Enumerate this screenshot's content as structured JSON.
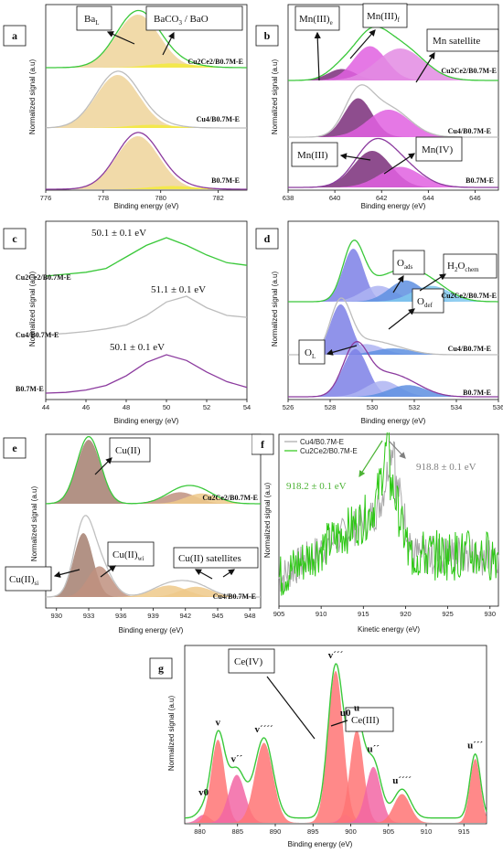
{
  "figure": {
    "panels": [
      "a",
      "b",
      "c",
      "d",
      "e",
      "f",
      "g"
    ]
  },
  "chart_data": [
    {
      "panel": "a",
      "type": "line",
      "xlabel": "Binding energy (eV)",
      "ylabel": "Normalized signal (a.u)",
      "xlim": [
        776,
        783
      ],
      "xticks": [
        776,
        778,
        780,
        782
      ],
      "colors": {
        "envelope_top": "#3ac83a",
        "envelope_mid": "#bdbdbd",
        "envelope_bottom": "#8b3a9e",
        "fill_main": "#eed49a",
        "fill_minor": "#f3ea3c"
      },
      "series": [
        {
          "name": "Cu2Ce2/B0.7M-E",
          "peaks": [
            {
              "label": "BaL",
              "center": 779.2,
              "sigma": 0.75,
              "amp": 1.0
            },
            {
              "label": "BaCO3 / BaO",
              "center": 780.4,
              "sigma": 0.8,
              "amp": 0.08
            }
          ]
        },
        {
          "name": "Cu4/B0.7M-E",
          "peaks": [
            {
              "label": "BaL",
              "center": 778.5,
              "sigma": 0.75,
              "amp": 1.0
            },
            {
              "label": "BaCO3 / BaO",
              "center": 779.7,
              "sigma": 0.8,
              "amp": 0.06
            }
          ]
        },
        {
          "name": "B0.7M-E",
          "peaks": [
            {
              "label": "BaL",
              "center": 779.2,
              "sigma": 0.75,
              "amp": 1.0
            },
            {
              "label": "BaCO3 / BaO",
              "center": 780.4,
              "sigma": 0.8,
              "amp": 0.06
            }
          ]
        }
      ],
      "annotations": {
        "ba_l_main": "Ba",
        "ba_l_sub": "L",
        "baco3_a": "BaCO",
        "baco3_sub": "3",
        "baco3_b": " / BaO"
      }
    },
    {
      "panel": "b",
      "type": "line",
      "xlabel": "Binding energy (eV)",
      "ylabel": "Normalized signal (a.u)",
      "xlim": [
        638,
        647
      ],
      "xticks": [
        638,
        640,
        642,
        644,
        646
      ],
      "colors": {
        "envelope_top": "#3ac83a",
        "envelope_mid": "#bdbdbd",
        "envelope_bottom": "#8b3a9e",
        "mn_e": "#7a2e7a",
        "mn_f": "#e060e0",
        "mn_sat": "#e38be3"
      },
      "series": [
        {
          "name": "Cu2Ce2/B0.7M-E",
          "peaks": [
            {
              "label": "Mn(III)e",
              "center": 640.3,
              "sigma": 0.6,
              "amp": 0.25
            },
            {
              "label": "Mn(III)f",
              "center": 641.5,
              "sigma": 0.7,
              "amp": 0.75
            },
            {
              "label": "Mn satellite",
              "center": 642.8,
              "sigma": 1.0,
              "amp": 0.7
            }
          ]
        },
        {
          "name": "Cu4/B0.7M-E",
          "peaks": [
            {
              "label": "Mn(III)",
              "center": 641.0,
              "sigma": 0.6,
              "amp": 0.85
            },
            {
              "label": "Mn(IV)",
              "center": 642.3,
              "sigma": 0.9,
              "amp": 0.6
            }
          ]
        },
        {
          "name": "B0.7M-E",
          "peaks": [
            {
              "label": "Mn(III)",
              "center": 641.6,
              "sigma": 0.8,
              "amp": 0.8
            },
            {
              "label": "Mn(IV)",
              "center": 642.8,
              "sigma": 0.9,
              "amp": 0.45
            }
          ]
        }
      ],
      "annotations": {
        "mn_e_main": "Mn(III)",
        "mn_e_sub": "e",
        "mn_f_main": "Mn(III)",
        "mn_f_sub": "f",
        "mn_sat": "Mn satellite",
        "mn_iii": "Mn(III)",
        "mn_iv": "Mn(IV)"
      }
    },
    {
      "panel": "c",
      "type": "line",
      "xlabel": "Binding energy (eV)",
      "ylabel": "Normalized signal (a.u)",
      "xlim": [
        44,
        54
      ],
      "xticks": [
        44,
        46,
        48,
        50,
        52,
        54
      ],
      "colors": {
        "top": "#3ac83a",
        "mid": "#bdbdbd",
        "bottom": "#8b3a9e"
      },
      "series": [
        {
          "name": "Cu2Ce2/B0.7M-E",
          "x": [
            44,
            45,
            46,
            47,
            48,
            49,
            50,
            51,
            52,
            53,
            54
          ],
          "y": [
            0.0,
            0.05,
            0.1,
            0.2,
            0.5,
            0.8,
            1.0,
            0.8,
            0.55,
            0.35,
            0.28
          ]
        },
        {
          "name": "Cu4/B0.7M-E",
          "x": [
            44,
            45,
            46,
            47,
            48,
            49,
            50,
            51,
            52,
            53,
            54
          ],
          "y": [
            0.0,
            0.03,
            0.08,
            0.15,
            0.25,
            0.5,
            0.85,
            1.0,
            0.7,
            0.5,
            0.45
          ]
        },
        {
          "name": "B0.7M-E",
          "x": [
            44,
            45,
            46,
            47,
            48,
            49,
            50,
            51,
            52,
            53,
            54
          ],
          "y": [
            0.0,
            0.02,
            0.08,
            0.2,
            0.45,
            0.8,
            1.0,
            0.85,
            0.55,
            0.3,
            0.15
          ]
        }
      ],
      "annotations": {
        "top": "50.1 ± 0.1 eV",
        "mid": "51.1 ± 0.1 eV",
        "bottom": "50.1 ± 0.1 eV"
      }
    },
    {
      "panel": "d",
      "type": "line",
      "xlabel": "Binding energy (eV)",
      "ylabel": "Normalized signal (a.u)",
      "xlim": [
        526,
        536
      ],
      "xticks": [
        526,
        528,
        530,
        532,
        534,
        536
      ],
      "colors": {
        "envelope_top": "#3ac83a",
        "envelope_mid": "#bdbdbd",
        "envelope_bottom": "#8b3a9e",
        "ol": "#7d80e6",
        "odef": "#aeb4f2",
        "oads": "#5e8fe0",
        "h2o": "#80c8ee"
      },
      "series": [
        {
          "name": "Cu2Ce2/B0.7M-E",
          "peaks": [
            {
              "label": "OL",
              "center": 529.1,
              "sigma": 0.5,
              "amp": 1.0
            },
            {
              "label": "Odef",
              "center": 530.3,
              "sigma": 0.8,
              "amp": 0.3
            },
            {
              "label": "Oads",
              "center": 531.6,
              "sigma": 0.8,
              "amp": 0.4
            },
            {
              "label": "H2Ochem",
              "center": 532.8,
              "sigma": 0.9,
              "amp": 0.3
            }
          ]
        },
        {
          "name": "Cu4/B0.7M-E",
          "peaks": [
            {
              "label": "OL",
              "center": 528.5,
              "sigma": 0.5,
              "amp": 0.95
            },
            {
              "label": "Odef",
              "center": 529.7,
              "sigma": 0.8,
              "amp": 0.2
            },
            {
              "label": "Oads",
              "center": 531.0,
              "sigma": 0.9,
              "amp": 0.12
            }
          ]
        },
        {
          "name": "B0.7M-E",
          "peaks": [
            {
              "label": "OL",
              "center": 529.2,
              "sigma": 0.6,
              "amp": 0.9
            },
            {
              "label": "Odef",
              "center": 530.5,
              "sigma": 0.8,
              "amp": 0.3
            },
            {
              "label": "Oads",
              "center": 531.7,
              "sigma": 0.9,
              "amp": 0.22
            }
          ]
        }
      ],
      "annotations": {
        "oads_main": "O",
        "oads_sub": "ads",
        "h2o_main": "H",
        "h2o_2": "2",
        "h2o_rest": "O",
        "h2o_sub": "chem",
        "odef_main": "O",
        "odef_sub": "def",
        "ol_main": "O",
        "ol_sub": "L"
      }
    },
    {
      "panel": "e",
      "type": "line",
      "xlabel": "Binding energy (eV)",
      "ylabel": "Normalized signal (a.u)",
      "xlim": [
        929,
        949
      ],
      "xticks": [
        930,
        933,
        936,
        939,
        942,
        945,
        948
      ],
      "colors": {
        "envelope_top": "#3ac83a",
        "envelope_bottom": "#c0c0c0",
        "cu_ii": "#a57f70",
        "cu_si": "#9b5a58",
        "cu_wi": "#c0917f",
        "sat": "#eec98a"
      },
      "series": [
        {
          "name": "Cu2Ce2/B0.7M-E",
          "peaks": [
            {
              "label": "Cu(II)",
              "center": 933.0,
              "sigma": 1.1,
              "amp": 1.0
            },
            {
              "label": "Cu(II) satellites",
              "center": 941.5,
              "sigma": 1.5,
              "amp": 0.18
            },
            {
              "label": "Cu(II) satellites",
              "center": 943.5,
              "sigma": 1.5,
              "amp": 0.16
            }
          ]
        },
        {
          "name": "Cu4/B0.7M-E",
          "peaks": [
            {
              "label": "Cu(II)si",
              "center": 932.5,
              "sigma": 0.9,
              "amp": 1.0
            },
            {
              "label": "Cu(II)wi",
              "center": 934.0,
              "sigma": 1.1,
              "amp": 0.48
            },
            {
              "label": "Cu(II) satellites",
              "center": 940.5,
              "sigma": 1.6,
              "amp": 0.18
            },
            {
              "label": "Cu(II) satellites",
              "center": 943.0,
              "sigma": 1.5,
              "amp": 0.16
            }
          ]
        }
      ],
      "annotations": {
        "cu_ii": "Cu(II)",
        "cu_wi_main": "Cu(II)",
        "cu_wi_sub": "wi",
        "cu_si_main": "Cu(II)",
        "cu_si_sub": "si",
        "sat": "Cu(II) satellites"
      }
    },
    {
      "panel": "f",
      "type": "line",
      "xlabel": "Kinetic energy (eV)",
      "ylabel": "Normalized signal (a.u)",
      "xlim": [
        905,
        931
      ],
      "xticks": [
        905,
        910,
        915,
        920,
        925,
        930
      ],
      "colors": {
        "cu4": "#a8a8a8",
        "cu2ce2": "#2dc815",
        "ann_green": "#4cb335",
        "ann_gray": "#808080"
      },
      "series": [
        {
          "name": "Cu4/B0.7M-E",
          "peak_center": 918.8,
          "noise": 0.12
        },
        {
          "name": "Cu2Ce2/B0.7M-E",
          "peak_center": 918.2,
          "noise": 0.15
        }
      ],
      "legend": {
        "position": "top-left",
        "entries": [
          "Cu4/B0.7M-E",
          "Cu2Ce2/B0.7M-E"
        ]
      },
      "annotations": {
        "green": "918.2 ± 0.1 eV",
        "gray": "918.8 ± 0.1 eV"
      }
    },
    {
      "panel": "g",
      "type": "line",
      "xlabel": "Binding energy (eV)",
      "ylabel": "Normalized signal (a.u)",
      "xlim": [
        878,
        918
      ],
      "xticks": [
        880,
        885,
        890,
        895,
        900,
        905,
        910,
        915
      ],
      "colors": {
        "envelope": "#3ac83a",
        "ce_iv": "#ff7474",
        "ce_iii": "#f266a5"
      },
      "peaks": [
        {
          "label": "v0",
          "center": 880.5,
          "sigma": 0.8,
          "amp": 0.05,
          "state": "Ce(III)"
        },
        {
          "label": "v",
          "center": 882.4,
          "sigma": 0.9,
          "amp": 0.52,
          "state": "Ce(IV)"
        },
        {
          "label": "v´´",
          "center": 884.9,
          "sigma": 1.1,
          "amp": 0.3,
          "state": "Ce(III)"
        },
        {
          "label": "v´´´´",
          "center": 888.5,
          "sigma": 1.2,
          "amp": 0.5,
          "state": "Ce(IV)"
        },
        {
          "label": "v´´´",
          "center": 898.0,
          "sigma": 1.0,
          "amp": 0.95,
          "state": "Ce(IV)"
        },
        {
          "label": "u0",
          "center": 899.3,
          "sigma": 0.7,
          "amp": 0.05,
          "state": "Ce(III)"
        },
        {
          "label": "u",
          "center": 900.8,
          "sigma": 0.9,
          "amp": 0.58,
          "state": "Ce(IV)"
        },
        {
          "label": "u´´",
          "center": 903.0,
          "sigma": 1.0,
          "amp": 0.35,
          "state": "Ce(III)"
        },
        {
          "label": "u´´´´",
          "center": 906.8,
          "sigma": 1.1,
          "amp": 0.18,
          "state": "Ce(IV)"
        },
        {
          "label": "u´´´",
          "center": 916.5,
          "sigma": 0.7,
          "amp": 0.4,
          "state": "Ce(IV)"
        }
      ],
      "annotations": {
        "ce_iv": "Ce(IV)",
        "ce_iii": "Ce(III)",
        "v0_main": "v",
        "v0_sub": "0",
        "u0_main": "u",
        "u0_sub": "0"
      }
    }
  ]
}
